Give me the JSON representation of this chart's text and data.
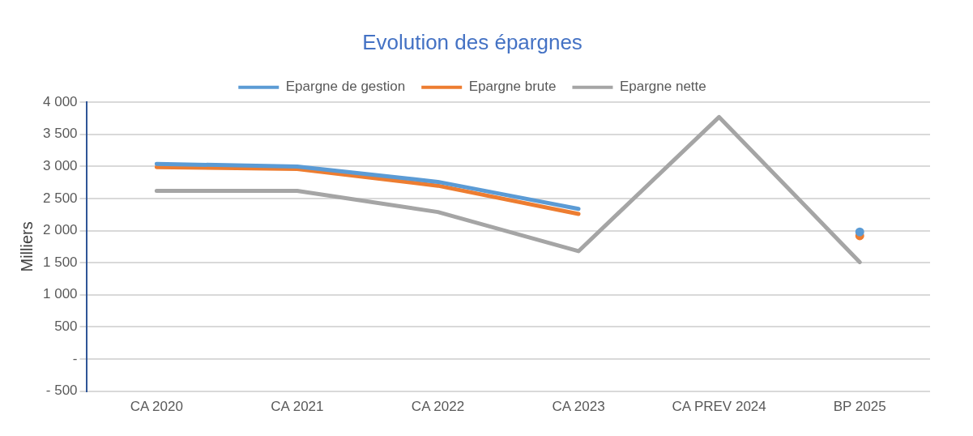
{
  "chart_data": {
    "type": "line",
    "title": "Evolution des épargnes",
    "ylabel": "Milliers",
    "categories": [
      "CA 2020",
      "CA 2021",
      "CA 2022",
      "CA 2023",
      "CA PREV 2024",
      "BP 2025"
    ],
    "series": [
      {
        "name": "Epargne de gestion",
        "color": "#5b9bd5",
        "values": [
          3040,
          3000,
          2760,
          2340,
          null,
          1980
        ]
      },
      {
        "name": "Epargne brute",
        "color": "#ed7d31",
        "values": [
          2990,
          2960,
          2700,
          2260,
          null,
          1920
        ]
      },
      {
        "name": "Epargne nette",
        "color": "#a5a5a5",
        "values": [
          2620,
          2620,
          2290,
          1680,
          3770,
          1510
        ]
      }
    ],
    "ylim": [
      -500,
      4000
    ],
    "yticks": [
      {
        "value": -500,
        "label": "- 500"
      },
      {
        "value": 0,
        "label": "-"
      },
      {
        "value": 500,
        "label": "500"
      },
      {
        "value": 1000,
        "label": "1 000"
      },
      {
        "value": 1500,
        "label": "1 500"
      },
      {
        "value": 2000,
        "label": "2 000"
      },
      {
        "value": 2500,
        "label": "2 500"
      },
      {
        "value": 3000,
        "label": "3 000"
      },
      {
        "value": 3500,
        "label": "3 500"
      },
      {
        "value": 4000,
        "label": "4 000"
      }
    ],
    "grid": "y",
    "legend": "top",
    "marker": "none",
    "line_style": "solid"
  }
}
